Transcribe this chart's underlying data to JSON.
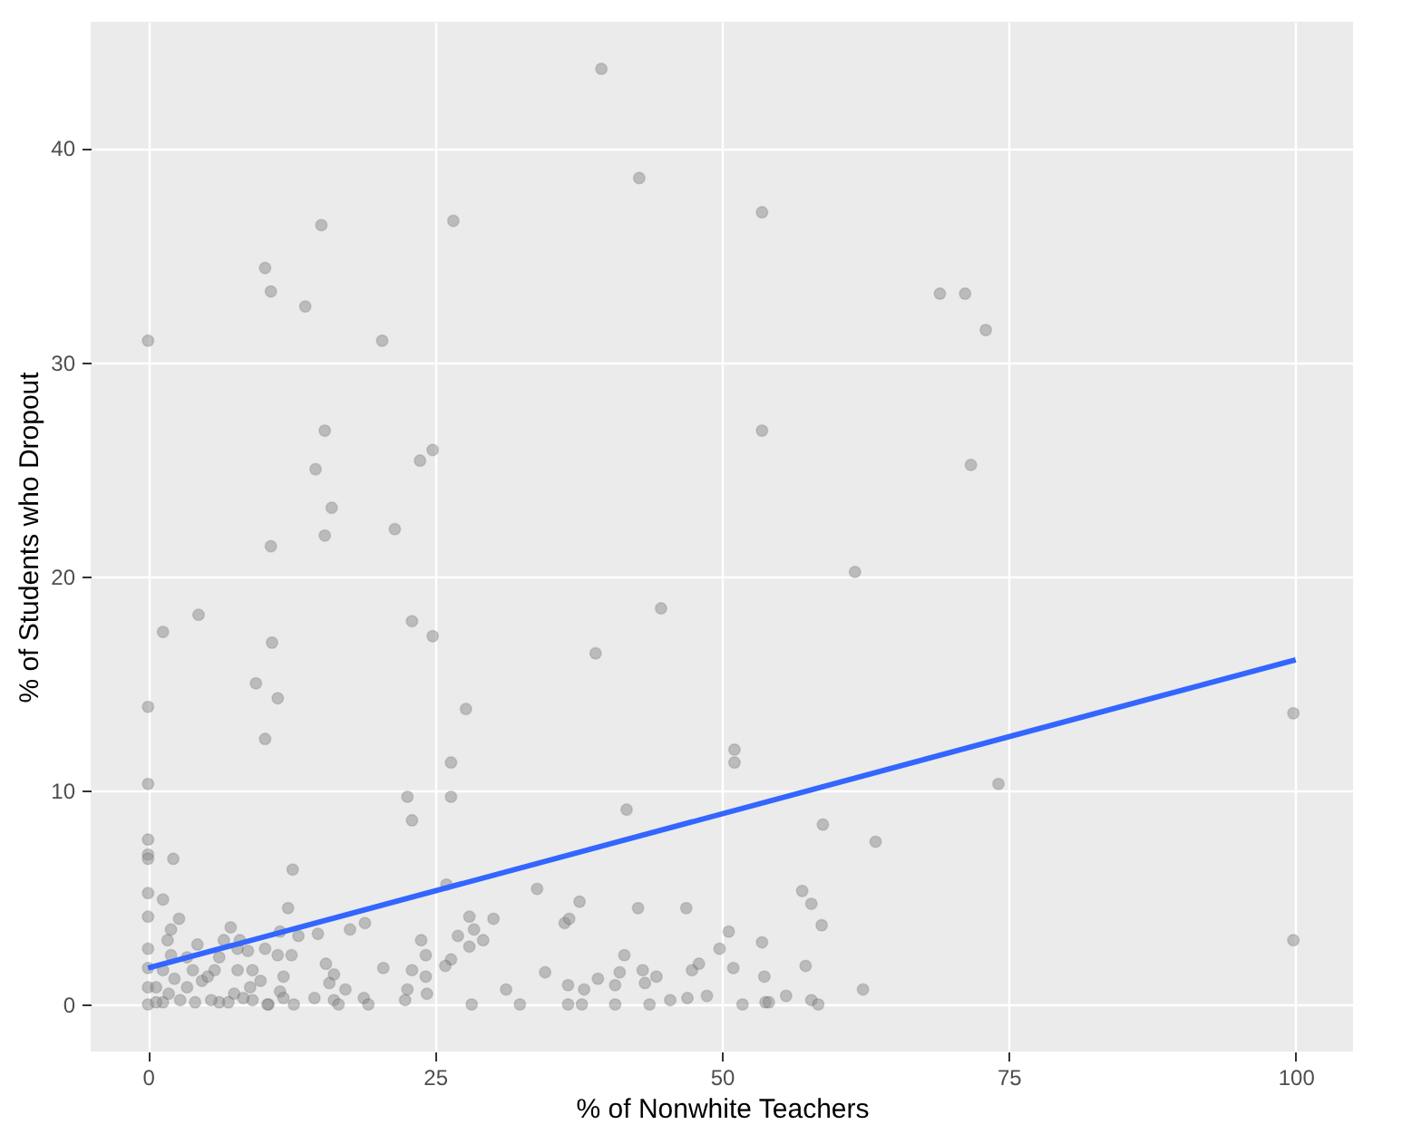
{
  "chart_data": {
    "type": "scatter",
    "xlabel": "% of Nonwhite Teachers",
    "ylabel": "% of Students who Dropout",
    "xlim": [
      -5,
      105
    ],
    "ylim": [
      -2.2,
      45.9
    ],
    "xticks": [
      0,
      25,
      50,
      75,
      100
    ],
    "yticks": [
      0,
      10,
      20,
      30,
      40
    ],
    "grid": true,
    "series": [
      {
        "color": "#8c8c8c",
        "marker": "circle",
        "x": [
          39.5,
          42.8,
          53.5,
          15.1,
          26.6,
          10.2,
          10.7,
          13.7,
          0,
          20.4,
          69.0,
          71.2,
          73.0,
          53.5,
          15.4,
          24.8,
          23.7,
          14.6,
          16.0,
          15.4,
          21.5,
          10.7,
          71.7,
          61.6,
          44.7,
          4.4,
          1.3,
          23.0,
          24.8,
          10.8,
          39.0,
          9.4,
          11.3,
          0,
          27.7,
          10.2,
          99.8,
          51.1,
          51.1,
          26.4,
          0,
          74.1,
          22.6,
          26.4,
          41.7,
          23.0,
          58.8,
          63.4,
          0,
          0,
          0,
          2.2,
          12.6,
          0,
          1.3,
          26.0,
          33.9,
          30.1,
          36.3,
          36.7,
          37.6,
          42.7,
          46.9,
          57.0,
          57.8,
          58.7,
          50.6,
          53.5,
          49.8,
          41.5,
          34.6,
          41.1,
          43.1,
          44.3,
          47.4,
          48.0,
          51.0,
          53.7,
          57.3,
          31.2,
          36.6,
          38.0,
          39.2,
          40.7,
          43.3,
          32.4,
          36.6,
          37.8,
          40.7,
          43.7,
          45.5,
          47.0,
          48.7,
          51.8,
          53.8,
          54.1,
          55.6,
          57.8,
          58.4,
          62.3,
          99.8,
          2.7,
          0,
          2.0,
          1.7,
          7.2,
          12.2,
          11.5,
          13.1,
          14.8,
          17.6,
          18.9,
          28.0,
          27.0,
          28.4,
          29.2,
          28.0,
          23.8,
          24.2,
          23.0,
          24.2,
          20.5,
          26.4,
          25.9,
          22.6,
          24.3,
          22.4,
          28.2,
          15.5,
          16.2,
          15.8,
          17.2,
          14.5,
          16.2,
          16.6,
          18.8,
          19.2,
          12.5,
          11.8,
          11.3,
          10.2,
          11.5,
          11.8,
          12.7,
          10.5,
          9.1,
          7.8,
          7.8,
          6.2,
          4.3,
          5.8,
          6.6,
          8.0,
          8.7,
          8.9,
          9.8,
          7.5,
          6.2,
          10.4,
          9.1,
          0,
          0,
          0,
          0,
          1.3,
          1.8,
          0.7,
          2.8,
          3.4,
          4.1,
          4.7,
          2.3,
          1.3,
          3.9,
          5.2,
          5.5,
          2.0,
          3.4,
          0.7,
          7.0,
          8.3
        ],
        "values": [
          43.7,
          38.6,
          37.0,
          36.4,
          36.6,
          34.4,
          33.3,
          32.6,
          31.0,
          31.0,
          33.2,
          33.2,
          31.5,
          26.8,
          26.8,
          25.9,
          25.4,
          25.0,
          23.2,
          21.9,
          22.2,
          21.4,
          25.2,
          20.2,
          18.5,
          18.2,
          17.4,
          17.9,
          17.2,
          16.9,
          16.4,
          15.0,
          14.3,
          13.9,
          13.8,
          12.4,
          13.6,
          11.9,
          11.3,
          11.3,
          10.3,
          10.3,
          9.7,
          9.7,
          9.1,
          8.6,
          8.4,
          7.6,
          7.7,
          7.0,
          6.8,
          6.8,
          6.3,
          5.2,
          4.9,
          5.6,
          5.4,
          4.0,
          3.8,
          4.0,
          4.8,
          4.5,
          4.5,
          5.3,
          4.7,
          3.7,
          3.4,
          2.9,
          2.6,
          2.3,
          1.5,
          1.5,
          1.6,
          1.3,
          1.6,
          1.9,
          1.7,
          1.3,
          1.8,
          0.7,
          0.9,
          0.7,
          1.2,
          0.9,
          1.0,
          0,
          0,
          0,
          0,
          0,
          0.2,
          0.3,
          0.4,
          0,
          0.1,
          0.1,
          0.4,
          0.2,
          0,
          0.7,
          3.0,
          4.0,
          4.1,
          3.5,
          3.0,
          3.6,
          4.5,
          3.4,
          3.2,
          3.3,
          3.5,
          3.8,
          4.1,
          3.2,
          3.5,
          3.0,
          2.7,
          3.0,
          2.3,
          1.6,
          1.3,
          1.7,
          2.1,
          1.8,
          0.7,
          0.5,
          0.2,
          0,
          1.9,
          1.4,
          1.0,
          0.7,
          0.3,
          0.2,
          0,
          0.3,
          0,
          2.3,
          1.3,
          2.3,
          2.6,
          0.6,
          0.3,
          0,
          0,
          1.6,
          1.6,
          2.6,
          2.2,
          2.8,
          1.6,
          3.0,
          3.0,
          2.5,
          0.8,
          1.1,
          0.5,
          0.1,
          0,
          0.2,
          2.6,
          1.7,
          0.8,
          0,
          0.1,
          0.5,
          0.8,
          0.2,
          0.8,
          0.1,
          1.1,
          1.2,
          1.6,
          1.6,
          1.3,
          0.2,
          2.3,
          2.2,
          0.1,
          0.1,
          0.3
        ]
      },
      {
        "type": "line",
        "color": "#3366ff",
        "x": [
          0,
          100
        ],
        "values": [
          1.7,
          16.1
        ]
      }
    ]
  }
}
